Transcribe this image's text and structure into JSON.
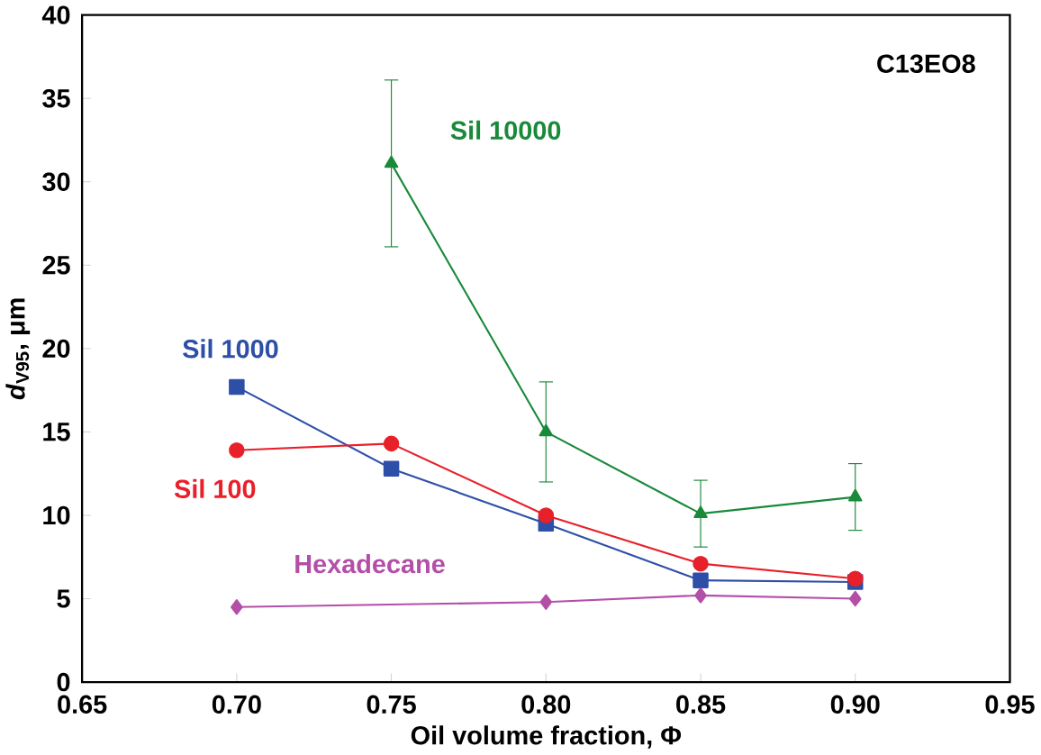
{
  "chart_data": {
    "type": "line",
    "xlabel": "Oil volume fraction, Φ",
    "ylabel": "*d*$_{V95}$, μm",
    "xlim": [
      0.65,
      0.95
    ],
    "xticks": [
      {
        "value": 0.65,
        "label": "0.65"
      },
      {
        "value": 0.7,
        "label": "0.70"
      },
      {
        "value": 0.75,
        "label": "0.75"
      },
      {
        "value": 0.8,
        "label": "0.80"
      },
      {
        "value": 0.85,
        "label": "0.85"
      },
      {
        "value": 0.9,
        "label": "0.90"
      },
      {
        "value": 0.95,
        "label": "0.95"
      }
    ],
    "ylim": [
      0,
      40
    ],
    "yticks": [
      0,
      5,
      10,
      15,
      20,
      25,
      30,
      35,
      40
    ],
    "grid": false,
    "line_style": "solid",
    "annotations": [
      "C13EO8"
    ],
    "series": [
      {
        "name": "Sil 10000",
        "color": "#1a8a3a",
        "marker": "triangle",
        "x": [
          0.75,
          0.8,
          0.85,
          0.9
        ],
        "values": [
          31.1,
          15.0,
          10.1,
          11.1
        ],
        "errors": [
          5,
          3,
          2,
          2
        ]
      },
      {
        "name": "Sil 1000",
        "color": "#2e4fa8",
        "marker": "square",
        "x": [
          0.7,
          0.75,
          0.8,
          0.85,
          0.9
        ],
        "values": [
          17.7,
          12.8,
          9.5,
          6.1,
          6.0
        ]
      },
      {
        "name": "Sil 100",
        "color": "#e8202a",
        "marker": "circle",
        "x": [
          0.7,
          0.75,
          0.8,
          0.85,
          0.9
        ],
        "values": [
          13.9,
          14.3,
          10.0,
          7.1,
          6.2
        ]
      },
      {
        "name": "Hexadecane",
        "color": "#b44fa8",
        "marker": "diamond",
        "x": [
          0.7,
          0.8,
          0.85,
          0.9
        ],
        "values": [
          4.5,
          4.8,
          5.2,
          5.0
        ]
      }
    ]
  }
}
